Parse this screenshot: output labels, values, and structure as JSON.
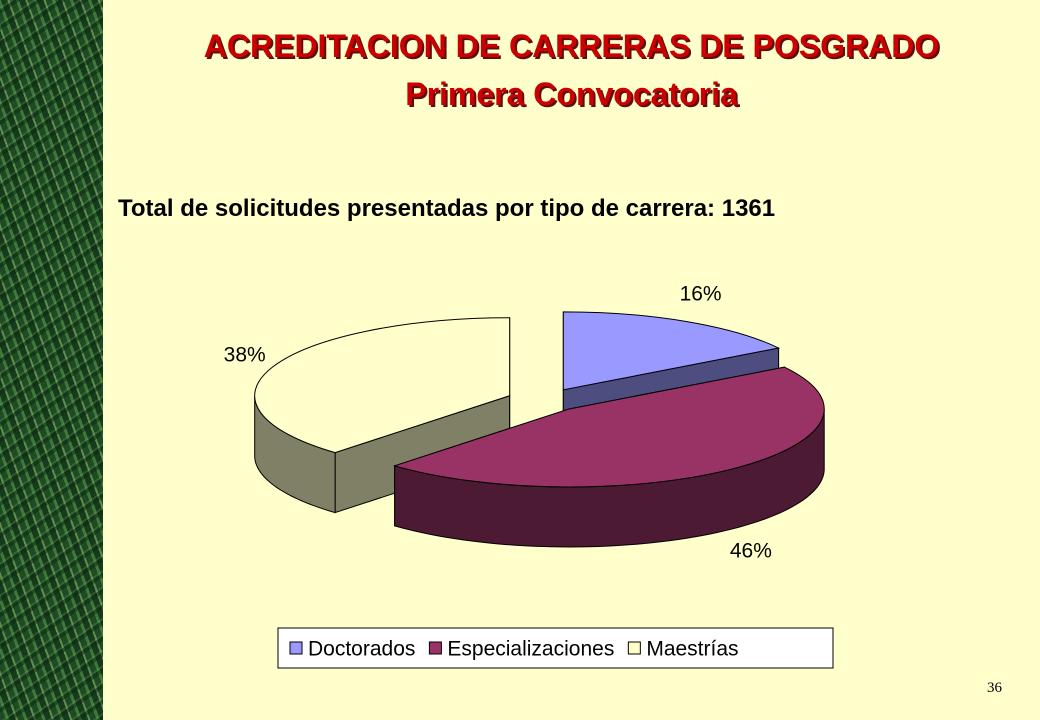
{
  "slide": {
    "title": "ACREDITACION DE CARRERAS DE POSGRADO",
    "subtitle": "Primera Convocatoria",
    "slide_number": "36"
  },
  "chart_data": {
    "type": "pie3d",
    "title": "Total de solicitudes presentadas por tipo de carrera: 1361",
    "categories": [
      "Doctorados",
      "Especializaciones",
      "Maestrías"
    ],
    "values": [
      16,
      46,
      38
    ],
    "value_labels": [
      "16%",
      "46%",
      "38%"
    ],
    "colors": [
      "#9999ff",
      "#993366",
      "#ffffcc"
    ],
    "legend": "bottom"
  }
}
